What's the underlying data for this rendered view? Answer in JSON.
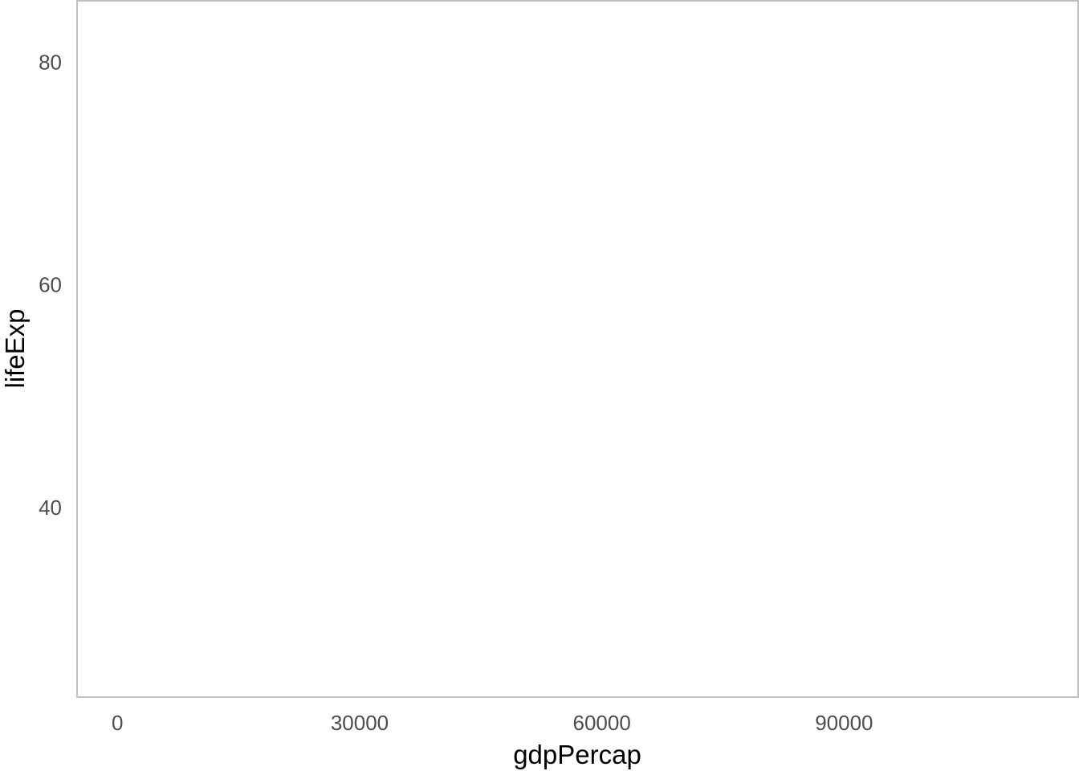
{
  "chart_data": {
    "type": "scatter",
    "title": "",
    "xlabel": "gdpPercap",
    "ylabel": "lifeExp",
    "xlim": [
      -5000,
      119000
    ],
    "ylim": [
      23,
      85.5
    ],
    "x_ticks": [
      0,
      30000,
      60000,
      90000
    ],
    "x_tick_labels": [
      "0",
      "30000",
      "60000",
      "90000"
    ],
    "y_ticks": [
      40,
      60,
      80
    ],
    "y_tick_labels": [
      "40",
      "60",
      "80"
    ],
    "grid": false,
    "panel_border_color": "#bfbfbf",
    "tick_label_color": "#4d4d4d",
    "points": []
  }
}
